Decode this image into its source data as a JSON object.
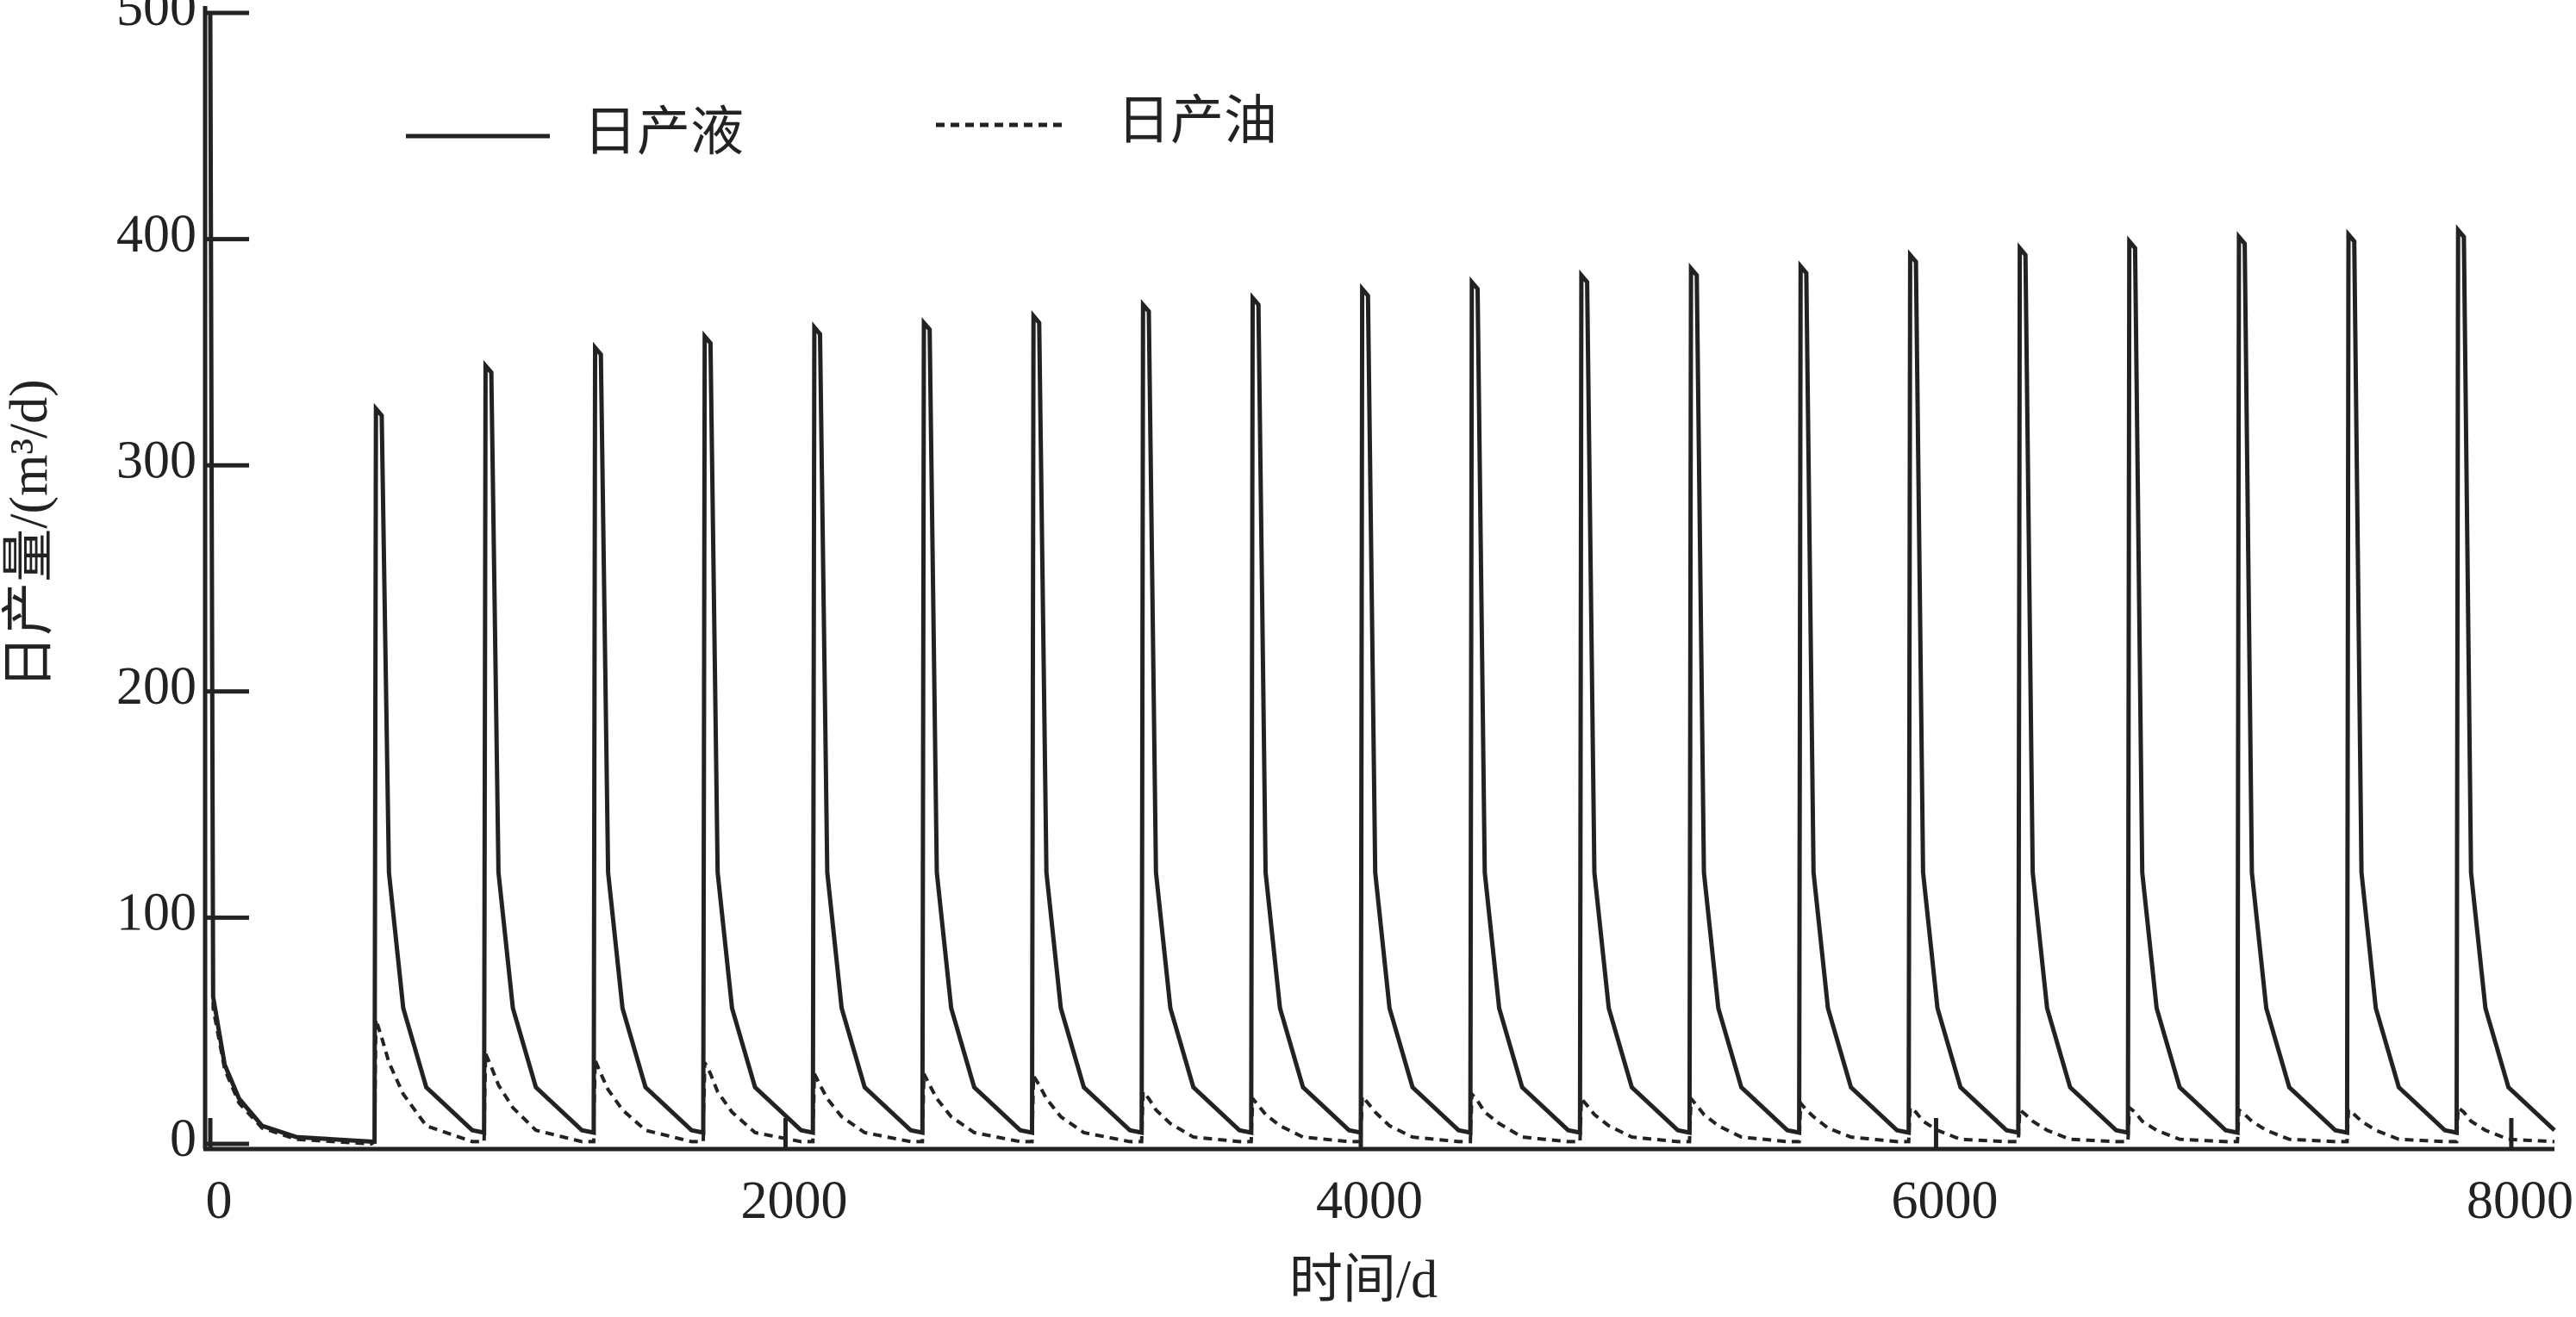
{
  "chart_data": {
    "type": "line",
    "xlabel": "时间/d",
    "ylabel": "日产量/(m³/d)",
    "xlim": [
      0,
      8150
    ],
    "ylim": [
      0,
      500
    ],
    "xticks": [
      0,
      2000,
      4000,
      6000,
      8000
    ],
    "yticks": [
      0,
      100,
      200,
      300,
      400,
      500
    ],
    "x": [
      0,
      10,
      50,
      100,
      180,
      300,
      560,
      571,
      576,
      596,
      621,
      671,
      751,
      911,
      952,
      957,
      977,
      1002,
      1052,
      1132,
      1292,
      1333,
      1338,
      1358,
      1383,
      1433,
      1513,
      1673,
      1714,
      1719,
      1739,
      1764,
      1814,
      1894,
      2054,
      2095,
      2100,
      2120,
      2145,
      2195,
      2275,
      2435,
      2476,
      2481,
      2501,
      2526,
      2576,
      2656,
      2816,
      2857,
      2862,
      2882,
      2907,
      2957,
      3037,
      3197,
      3238,
      3243,
      3263,
      3288,
      3338,
      3418,
      3578,
      3619,
      3624,
      3644,
      3669,
      3719,
      3799,
      3959,
      4000,
      4005,
      4025,
      4050,
      4100,
      4180,
      4340,
      4381,
      4386,
      4406,
      4431,
      4481,
      4561,
      4721,
      4762,
      4767,
      4787,
      4812,
      4862,
      4942,
      5102,
      5143,
      5148,
      5168,
      5193,
      5243,
      5323,
      5483,
      5524,
      5529,
      5549,
      5574,
      5624,
      5704,
      5864,
      5905,
      5910,
      5930,
      5955,
      6005,
      6085,
      6245,
      6286,
      6291,
      6311,
      6336,
      6386,
      6466,
      6626,
      6667,
      6672,
      6692,
      6717,
      6767,
      6847,
      7007,
      7048,
      7053,
      7073,
      7098,
      7148,
      7228,
      7388,
      7429,
      7434,
      7454,
      7479,
      7529,
      7609,
      7769,
      7810,
      7815,
      7835,
      7860,
      7910,
      7990,
      8150
    ],
    "series": [
      {
        "name": "日产液",
        "color": "#222222",
        "line_style": "solid",
        "values": [
          500,
          65,
          35,
          20,
          8,
          3,
          1,
          1,
          325,
          322,
          120,
          60,
          25,
          6,
          5,
          344,
          341,
          120,
          60,
          25,
          6,
          5,
          352,
          349,
          120,
          60,
          25,
          6,
          5,
          357,
          354,
          120,
          60,
          25,
          6,
          5,
          361,
          358,
          120,
          60,
          25,
          6,
          5,
          363,
          360,
          120,
          60,
          25,
          6,
          5,
          366,
          363,
          120,
          60,
          25,
          6,
          5,
          371,
          368,
          120,
          60,
          25,
          6,
          5,
          374,
          371,
          120,
          60,
          25,
          6,
          5,
          378,
          375,
          120,
          60,
          25,
          6,
          5,
          381,
          378,
          120,
          60,
          25,
          6,
          5,
          384,
          381,
          120,
          60,
          25,
          6,
          5,
          387,
          384,
          120,
          60,
          25,
          6,
          5,
          388,
          385,
          120,
          60,
          25,
          6,
          5,
          393,
          390,
          120,
          60,
          25,
          6,
          5,
          396,
          393,
          120,
          60,
          25,
          6,
          5,
          399,
          396,
          120,
          60,
          25,
          6,
          5,
          401,
          398,
          120,
          60,
          25,
          6,
          5,
          402,
          399,
          120,
          60,
          25,
          6,
          5,
          404,
          401,
          120,
          60,
          25,
          6
        ]
      },
      {
        "name": "日产油",
        "color": "#222222",
        "line_style": "dashed",
        "values": [
          490,
          60,
          33,
          18,
          7,
          2,
          0,
          1,
          55,
          47,
          36,
          22,
          8,
          1,
          1,
          40,
          34,
          26,
          16,
          6,
          1,
          1,
          37,
          31,
          24,
          15,
          6,
          1,
          1,
          36,
          31,
          23,
          14,
          5,
          1,
          1,
          31,
          26,
          20,
          12,
          5,
          1,
          1,
          31,
          26,
          20,
          12,
          5,
          1,
          1,
          30,
          26,
          20,
          12,
          5,
          1,
          1,
          23,
          20,
          15,
          9,
          3,
          1,
          1,
          20,
          17,
          13,
          8,
          3,
          1,
          1,
          21,
          18,
          14,
          8,
          3,
          1,
          1,
          22,
          19,
          14,
          9,
          3,
          1,
          1,
          20,
          17,
          13,
          8,
          3,
          1,
          1,
          20,
          17,
          13,
          8,
          3,
          1,
          1,
          18,
          15,
          12,
          7,
          3,
          1,
          1,
          16,
          14,
          10,
          6,
          2,
          1,
          1,
          15,
          13,
          10,
          6,
          2,
          1,
          1,
          16,
          14,
          10,
          6,
          2,
          1,
          1,
          15,
          13,
          10,
          6,
          2,
          1,
          1,
          15,
          13,
          10,
          6,
          2,
          1,
          1,
          16,
          14,
          10,
          6,
          2,
          1
        ]
      }
    ]
  }
}
